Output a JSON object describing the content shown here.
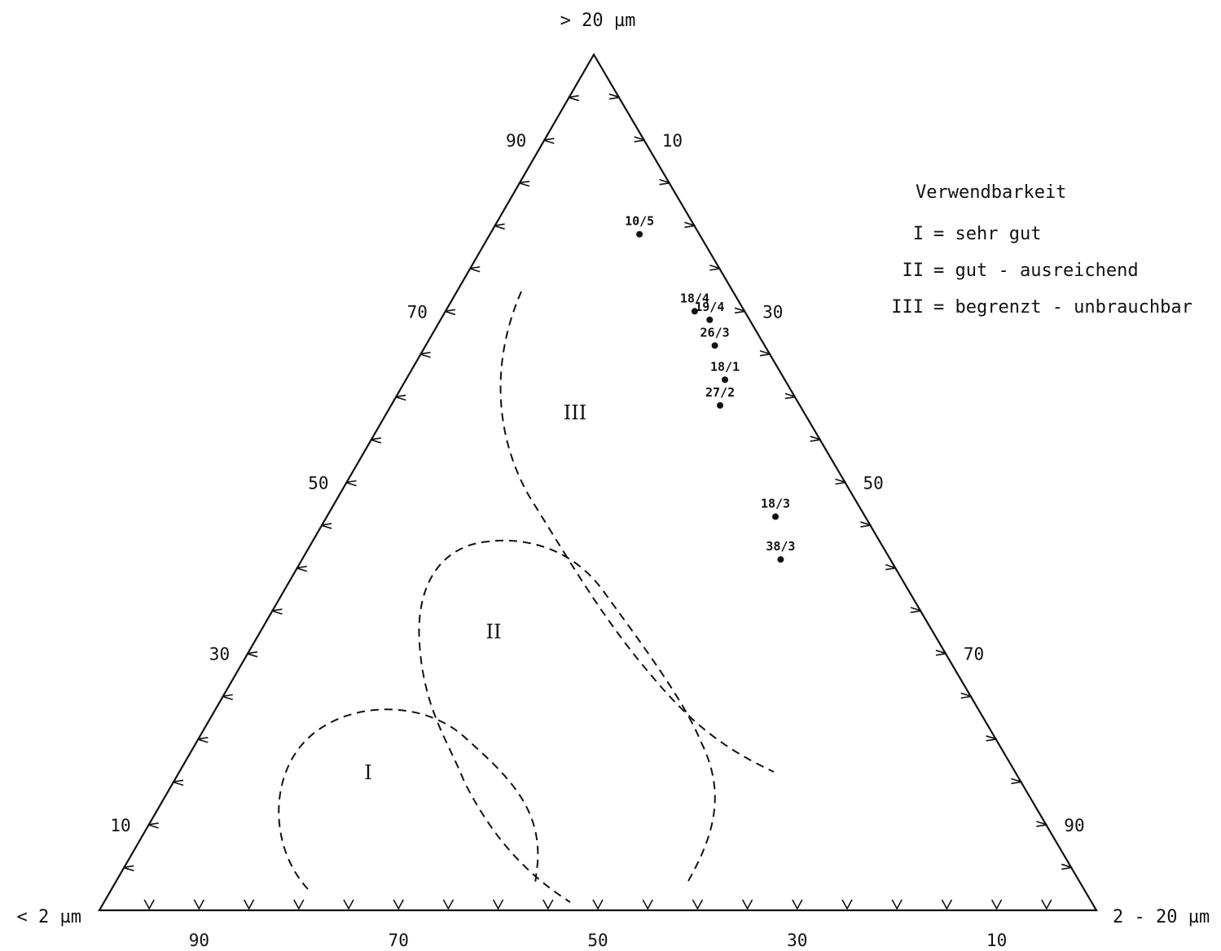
{
  "chart_data": {
    "type": "ternary-scatter",
    "axes": {
      "top": "> 20 µm",
      "left": "< 2 µm",
      "right": "2 - 20 µm"
    },
    "ticks": {
      "left": [
        "90",
        "70",
        "50",
        "30",
        "10"
      ],
      "right": [
        "10",
        "30",
        "50",
        "70",
        "90"
      ],
      "bottom": [
        "90",
        "70",
        "50",
        "30",
        "10"
      ]
    },
    "legend": {
      "title": "Verwendbarkeit",
      "items": [
        {
          "key": "I",
          "text": "= sehr gut"
        },
        {
          "key": "II",
          "text": "= gut - ausreichend"
        },
        {
          "key": "III",
          "text": "= begrenzt - unbrauchbar"
        }
      ]
    },
    "regions": [
      {
        "label": "I",
        "label_at": {
          "top": 15,
          "right": 31
        },
        "outline": [
          [
            0,
            0
          ],
          [
            -1,
            0
          ]
        ]
      },
      {
        "label": "II",
        "label_at": {
          "top": 28,
          "right": 48
        },
        "outline": [
          [
            0,
            0
          ],
          [
            -1,
            0
          ]
        ]
      },
      {
        "label": "III",
        "label_at": {
          "top": 62,
          "right": 30
        },
        "outline": [
          [
            0,
            0
          ],
          [
            -1,
            0
          ]
        ]
      }
    ],
    "points": [
      {
        "label": "10/5",
        "top": 79,
        "right": 15
      },
      {
        "label": "18/4",
        "top": 70,
        "right": 25
      },
      {
        "label": "19/4",
        "top": 69,
        "right": 27
      },
      {
        "label": "26/3",
        "top": 66,
        "right": 29
      },
      {
        "label": "18/1",
        "top": 62,
        "right": 32
      },
      {
        "label": "27/2",
        "top": 59,
        "right": 33
      },
      {
        "label": "18/3",
        "top": 46,
        "right": 45
      },
      {
        "label": "38/3",
        "top": 41,
        "right": 48
      }
    ]
  }
}
